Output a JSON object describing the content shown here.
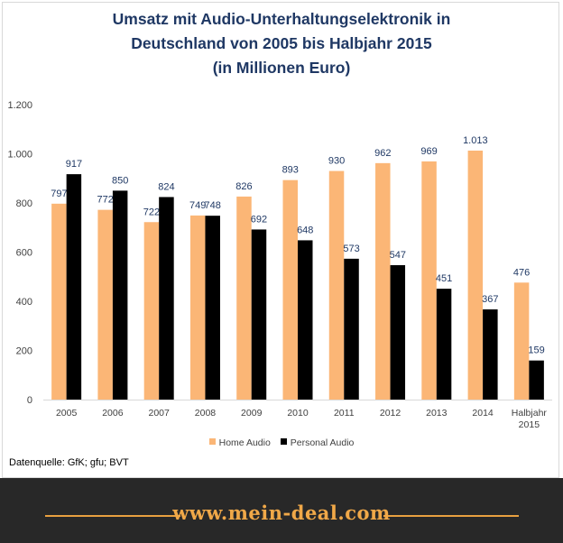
{
  "title_lines": [
    "Umsatz mit Audio-Unterhaltungselektronik  in",
    "Deutschland  von 2005 bis Halbjahr  2015",
    "(in Millionen Euro)"
  ],
  "source": "Datenquelle: GfK; gfu; BVT",
  "footer": {
    "site": "www.mein-deal.com"
  },
  "colors": {
    "home_audio": "#fbb676",
    "personal_audio": "#000000",
    "title": "#1f3864",
    "label": "#1f3864",
    "footer_bg": "#282828",
    "footer_accent": "#e8a040"
  },
  "chart_data": {
    "type": "bar",
    "title": "Umsatz mit Audio-Unterhaltungselektronik in Deutschland von 2005 bis Halbjahr 2015 (in Millionen Euro)",
    "categories": [
      "2005",
      "2006",
      "2007",
      "2008",
      "2009",
      "2010",
      "2011",
      "2012",
      "2013",
      "2014",
      "Halbjahr 2015"
    ],
    "category_lines": [
      [
        "2005"
      ],
      [
        "2006"
      ],
      [
        "2007"
      ],
      [
        "2008"
      ],
      [
        "2009"
      ],
      [
        "2010"
      ],
      [
        "2011"
      ],
      [
        "2012"
      ],
      [
        "2013"
      ],
      [
        "2014"
      ],
      [
        "Halbjahr",
        "2015"
      ]
    ],
    "series": [
      {
        "name": "Home Audio",
        "values": [
          797,
          772,
          722,
          749,
          826,
          893,
          930,
          962,
          969,
          1013,
          476
        ],
        "labels": [
          "797",
          "772",
          "722",
          "749",
          "826",
          "893",
          "930",
          "962",
          "969",
          "1.013",
          "476"
        ]
      },
      {
        "name": "Personal Audio",
        "values": [
          917,
          850,
          824,
          748,
          692,
          648,
          573,
          547,
          451,
          367,
          159
        ],
        "labels": [
          "917",
          "850",
          "824",
          "748",
          "692",
          "648",
          "573",
          "547",
          "451",
          "367",
          "159"
        ]
      }
    ],
    "ylim": [
      0,
      1200
    ],
    "yticks": [
      0,
      200,
      400,
      600,
      800,
      1000,
      1200
    ],
    "ytick_labels": [
      "0",
      "200",
      "400",
      "600",
      "800",
      "1.000",
      "1.200"
    ],
    "grid": false,
    "legend_position": "bottom"
  }
}
